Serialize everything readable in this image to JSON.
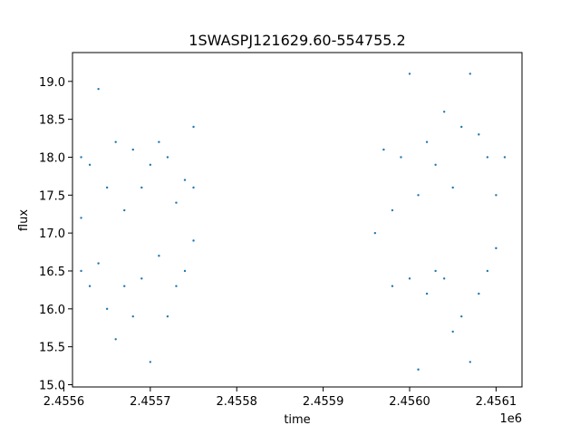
{
  "chart_data": {
    "type": "scatter",
    "title": "1SWASPJ121629.60-554755.2",
    "xlabel": "time",
    "ylabel": "flux",
    "x_offset_label": "1e6",
    "xlim": [
      2.45561,
      2.45613
    ],
    "ylim": [
      14.97,
      19.38
    ],
    "x_ticks": [
      2.4556,
      2.4557,
      2.4558,
      2.4559,
      2.456,
      2.4561
    ],
    "x_tick_labels": [
      "2.4556",
      "2.4557",
      "2.4558",
      "2.4559",
      "2.4560",
      "2.4561"
    ],
    "y_ticks": [
      15.0,
      15.5,
      16.0,
      16.5,
      17.0,
      17.5,
      18.0,
      18.5,
      19.0
    ],
    "y_tick_labels": [
      "15.0",
      "15.5",
      "16.0",
      "16.5",
      "17.0",
      "17.5",
      "18.0",
      "18.5",
      "19.0"
    ],
    "grid": false,
    "marker_color": "#1f77b4",
    "series": [
      {
        "x": [
          2.45562,
          2.45562,
          2.45562,
          2.45563,
          2.45563,
          2.45564,
          2.45564,
          2.45565,
          2.45565,
          2.45566,
          2.45566,
          2.45567,
          2.45567,
          2.45568,
          2.45568,
          2.45569,
          2.45569,
          2.4557,
          2.4557,
          2.45571,
          2.45571,
          2.45572,
          2.45572,
          2.45573,
          2.45573,
          2.45574,
          2.45574,
          2.45575,
          2.45575,
          2.45575,
          2.45596,
          2.45597,
          2.45598,
          2.45598,
          2.45599,
          2.456,
          2.456,
          2.45601,
          2.45601,
          2.45602,
          2.45602,
          2.45603,
          2.45603,
          2.45604,
          2.45604,
          2.45605,
          2.45605,
          2.45606,
          2.45606,
          2.45607,
          2.45607,
          2.45608,
          2.45608,
          2.45609,
          2.45609,
          2.4561,
          2.4561,
          2.45611
        ],
        "y": [
          17.2,
          16.5,
          18.0,
          16.3,
          17.9,
          16.6,
          18.9,
          17.6,
          16.0,
          18.2,
          15.6,
          17.3,
          16.3,
          18.1,
          15.9,
          17.6,
          16.4,
          17.9,
          15.3,
          18.2,
          16.7,
          18.0,
          15.9,
          17.4,
          16.3,
          17.7,
          16.5,
          17.6,
          16.9,
          18.4,
          17.0,
          18.1,
          16.3,
          17.3,
          18.0,
          16.4,
          19.1,
          17.5,
          15.2,
          18.2,
          16.2,
          17.9,
          16.5,
          18.6,
          16.4,
          17.6,
          15.7,
          18.4,
          15.9,
          19.1,
          15.3,
          18.3,
          16.2,
          18.0,
          16.5,
          17.5,
          16.8,
          18.0
        ]
      }
    ]
  }
}
